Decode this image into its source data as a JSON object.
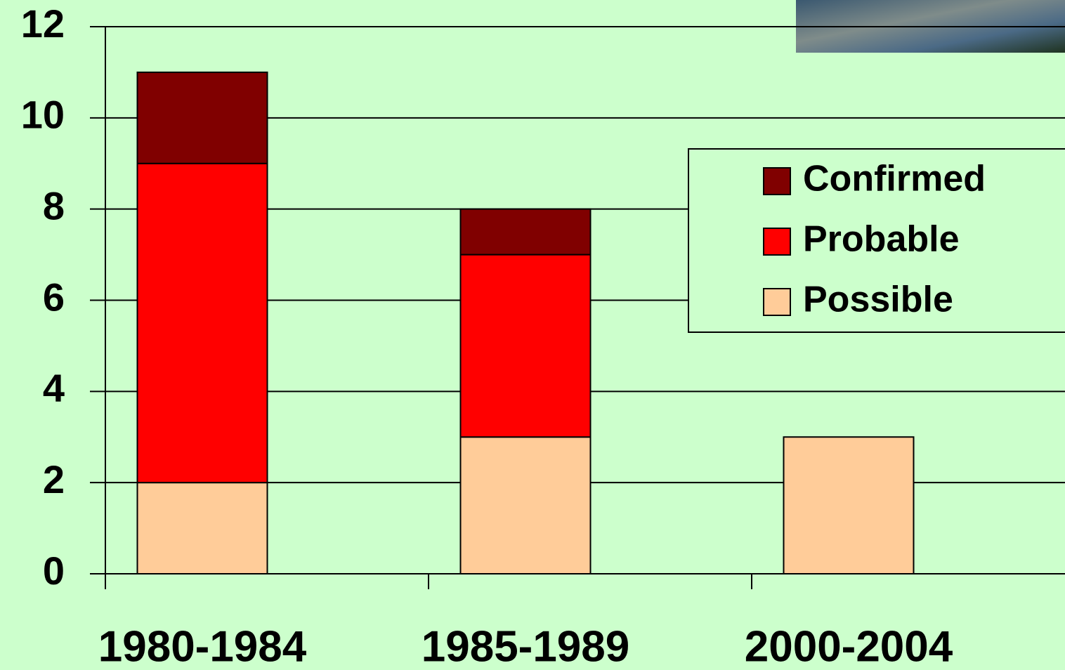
{
  "chart_data": {
    "type": "stacked_bar",
    "categories": [
      "1980-1984",
      "1985-1989",
      "2000-2004"
    ],
    "series": [
      {
        "name": "Confirmed",
        "color": "#800000",
        "values": [
          2,
          1,
          0
        ]
      },
      {
        "name": "Probable",
        "color": "#ff0000",
        "values": [
          7,
          4,
          0
        ]
      },
      {
        "name": "Possible",
        "color": "#ffcc99",
        "values": [
          2,
          3,
          3
        ]
      }
    ],
    "ylim": [
      0,
      12
    ],
    "yticks": [
      0,
      2,
      4,
      6,
      8,
      10,
      12
    ],
    "grid": true,
    "legend": "upper right"
  }
}
